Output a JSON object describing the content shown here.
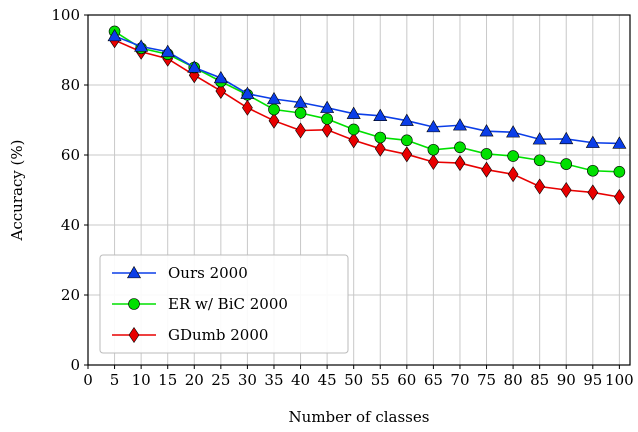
{
  "chart_data": {
    "type": "line",
    "xlabel": "Number of classes",
    "ylabel": "Accuracy (%)",
    "xlim": [
      0,
      102
    ],
    "ylim": [
      0,
      100
    ],
    "xticks": [
      0,
      5,
      10,
      15,
      20,
      25,
      30,
      35,
      40,
      45,
      50,
      55,
      60,
      65,
      70,
      75,
      80,
      85,
      90,
      95,
      100
    ],
    "yticks": [
      0,
      20,
      40,
      60,
      80,
      100
    ],
    "grid": true,
    "legend_position": "bottom-left",
    "x": [
      5,
      10,
      15,
      20,
      25,
      30,
      35,
      40,
      45,
      50,
      55,
      60,
      65,
      70,
      75,
      80,
      85,
      90,
      95,
      100
    ],
    "series": [
      {
        "name": "Ours 2000",
        "color": "#0b3ee8",
        "marker": "triangle",
        "values": [
          94.0,
          91.0,
          89.5,
          85.0,
          82.0,
          77.5,
          76.0,
          75.0,
          73.5,
          71.8,
          71.2,
          69.8,
          68.0,
          68.5,
          66.8,
          66.5,
          64.5,
          64.6,
          63.5,
          63.3
        ]
      },
      {
        "name": "ER w/ BiC 2000",
        "color": "#00e000",
        "marker": "circle",
        "values": [
          95.3,
          90.5,
          88.8,
          85.0,
          81.0,
          77.2,
          73.0,
          72.0,
          70.3,
          67.3,
          65.0,
          64.2,
          61.5,
          62.2,
          60.3,
          59.7,
          58.5,
          57.4,
          55.5,
          55.2
        ]
      },
      {
        "name": "GDumb 2000",
        "color": "#e80000",
        "marker": "diamond",
        "values": [
          92.8,
          89.5,
          87.5,
          82.8,
          78.3,
          73.5,
          69.8,
          67.0,
          67.2,
          64.2,
          61.8,
          60.2,
          58.0,
          57.7,
          55.8,
          54.5,
          51.0,
          50.0,
          49.3,
          48.0
        ]
      }
    ]
  }
}
